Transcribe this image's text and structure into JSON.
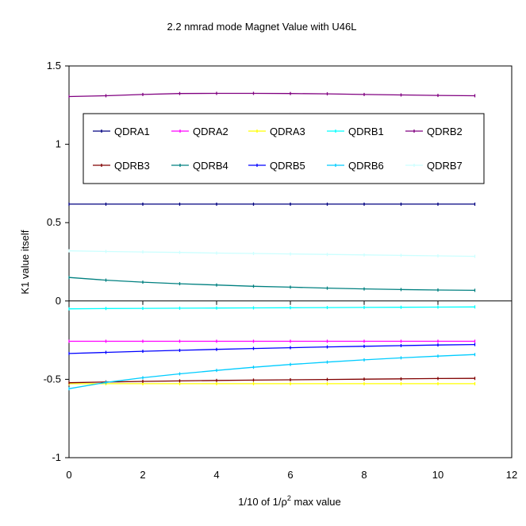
{
  "chart_data": {
    "type": "line",
    "title": "2.2 nmrad mode Magnet Value with U46L",
    "xlabel_prefix": "1/10 of 1/ρ",
    "xlabel_sup": "2",
    "xlabel_suffix": " max value",
    "ylabel": "K1 value itself",
    "xlim": [
      0,
      12
    ],
    "ylim": [
      -1,
      1.5
    ],
    "xticks": [
      0,
      2,
      4,
      6,
      8,
      10,
      12
    ],
    "yticks": [
      -1,
      -0.5,
      0,
      0.5,
      1,
      1.5
    ],
    "xtick_labels": [
      "0",
      "2",
      "4",
      "6",
      "8",
      "10",
      "12"
    ],
    "ytick_labels": [
      "-1",
      "-0.5",
      "0",
      "0.5",
      "1",
      "1.5"
    ],
    "grid": false,
    "legend_position": "top",
    "x": [
      0,
      1,
      2,
      3,
      4,
      5,
      6,
      7,
      8,
      9,
      10,
      11
    ],
    "series": [
      {
        "name": "QDRA1",
        "color": "#000080",
        "values": [
          0.618,
          0.618,
          0.618,
          0.618,
          0.618,
          0.618,
          0.618,
          0.618,
          0.618,
          0.618,
          0.618,
          0.618
        ]
      },
      {
        "name": "QDRA2",
        "color": "#ff00ff",
        "values": [
          -0.257,
          -0.257,
          -0.257,
          -0.257,
          -0.257,
          -0.257,
          -0.257,
          -0.257,
          -0.257,
          -0.257,
          -0.257,
          -0.257
        ]
      },
      {
        "name": "QDRA3",
        "color": "#ffff00",
        "values": [
          -0.528,
          -0.528,
          -0.528,
          -0.528,
          -0.528,
          -0.528,
          -0.528,
          -0.528,
          -0.528,
          -0.528,
          -0.528,
          -0.528
        ]
      },
      {
        "name": "QDRB1",
        "color": "#00ffff",
        "values": [
          -0.05,
          -0.048,
          -0.047,
          -0.046,
          -0.045,
          -0.044,
          -0.043,
          -0.042,
          -0.041,
          -0.04,
          -0.039,
          -0.038
        ]
      },
      {
        "name": "QDRB2",
        "color": "#800080",
        "values": [
          1.305,
          1.31,
          1.318,
          1.324,
          1.325,
          1.325,
          1.324,
          1.322,
          1.318,
          1.315,
          1.312,
          1.31
        ]
      },
      {
        "name": "QDRB3",
        "color": "#800000",
        "values": [
          -0.522,
          -0.517,
          -0.513,
          -0.51,
          -0.507,
          -0.505,
          -0.503,
          -0.501,
          -0.499,
          -0.497,
          -0.495,
          -0.494
        ]
      },
      {
        "name": "QDRB4",
        "color": "#008080",
        "values": [
          0.15,
          0.133,
          0.12,
          0.11,
          0.102,
          0.094,
          0.088,
          0.082,
          0.077,
          0.073,
          0.07,
          0.068
        ]
      },
      {
        "name": "QDRB5",
        "color": "#0000ff",
        "values": [
          -0.335,
          -0.328,
          -0.321,
          -0.315,
          -0.309,
          -0.303,
          -0.298,
          -0.293,
          -0.289,
          -0.285,
          -0.281,
          -0.278
        ]
      },
      {
        "name": "QDRB6",
        "color": "#00ccff",
        "values": [
          -0.56,
          -0.52,
          -0.49,
          -0.465,
          -0.443,
          -0.423,
          -0.405,
          -0.39,
          -0.376,
          -0.363,
          -0.352,
          -0.342
        ]
      },
      {
        "name": "QDRB7",
        "color": "#ccffff",
        "values": [
          0.32,
          0.316,
          0.313,
          0.31,
          0.306,
          0.303,
          0.3,
          0.297,
          0.294,
          0.291,
          0.288,
          0.285
        ]
      }
    ]
  }
}
